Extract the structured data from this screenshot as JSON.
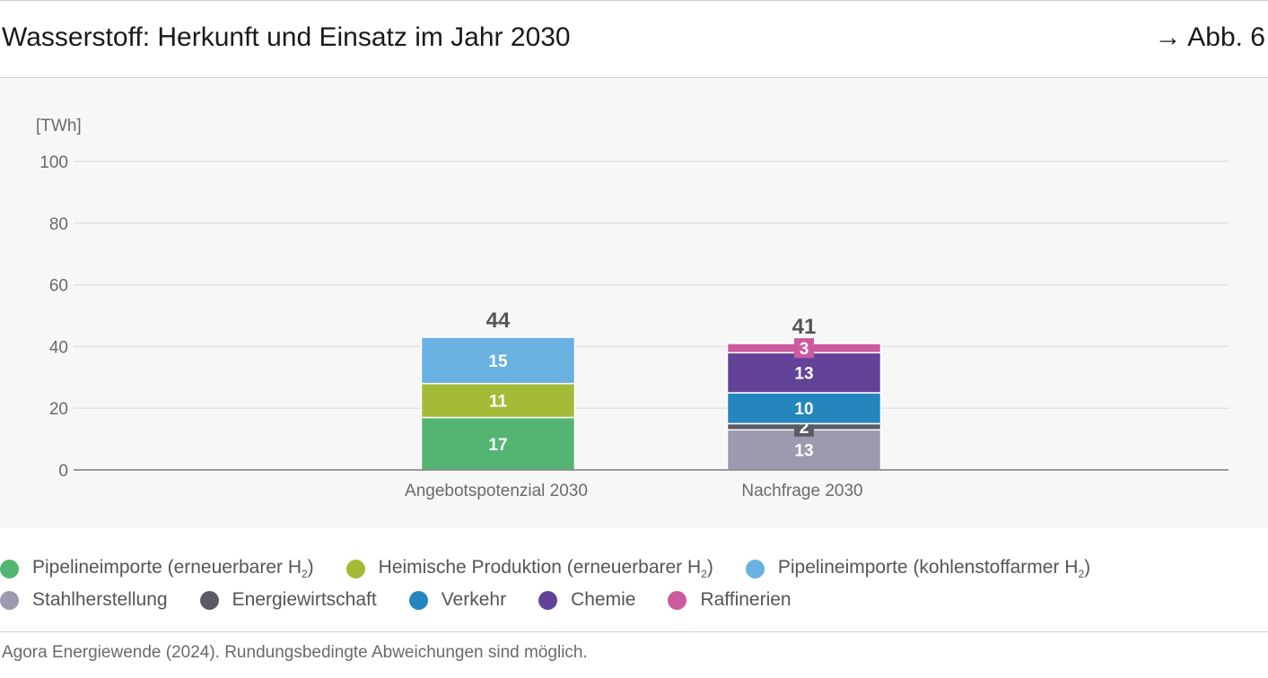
{
  "header": {
    "title": "Wasserstoff: Herkunft und Einsatz im Jahr 2030",
    "figure_ref": "→ Abb. 6"
  },
  "chart_data": {
    "type": "bar",
    "stacked": true,
    "title": "Wasserstoff: Herkunft und Einsatz im Jahr 2030",
    "ylabel": "[TWh]",
    "ylim": [
      0,
      100
    ],
    "yticks": [
      0,
      20,
      40,
      60,
      80,
      100
    ],
    "grid": true,
    "legend_position": "bottom",
    "categories": [
      "Angebotspotenzial 2030",
      "Nachfrage 2030"
    ],
    "totals": [
      44,
      41
    ],
    "series": [
      {
        "name": "Pipelineimporte (erneuerbarer H₂)",
        "color": "#54b573",
        "values": [
          17,
          0
        ],
        "labels": [
          "17",
          ""
        ],
        "label_style": "inside"
      },
      {
        "name": "Heimische Produktion (erneuerbarer H₂)",
        "color": "#a3bb36",
        "values": [
          11,
          0
        ],
        "labels": [
          "11",
          ""
        ],
        "label_style": "inside"
      },
      {
        "name": "Pipelineimporte (kohlenstoffarmer H₂)",
        "color": "#69b1e0",
        "values": [
          15,
          0
        ],
        "labels": [
          "15",
          ""
        ],
        "label_style": "inside"
      },
      {
        "name": "Stahlherstellung",
        "color": "#9b9aae",
        "values": [
          0,
          13
        ],
        "labels": [
          "",
          "13"
        ],
        "label_style": "inside"
      },
      {
        "name": "Energiewirtschaft",
        "color": "#5a5b66",
        "values": [
          0,
          2
        ],
        "labels": [
          "",
          "2"
        ],
        "label_style": "box"
      },
      {
        "name": "Verkehr",
        "color": "#2586bd",
        "values": [
          0,
          10
        ],
        "labels": [
          "",
          "10"
        ],
        "label_style": "inside"
      },
      {
        "name": "Chemie",
        "color": "#634398",
        "values": [
          0,
          13
        ],
        "labels": [
          "",
          "13"
        ],
        "label_style": "inside"
      },
      {
        "name": "Raffinerien",
        "color": "#cc5a9e",
        "values": [
          0,
          3
        ],
        "labels": [
          "",
          "3"
        ],
        "label_style": "box"
      }
    ]
  },
  "legend": {
    "row1": [
      {
        "text": "Pipelineimporte (erneuerbarer H",
        "sub": "2",
        "after": ")",
        "color": "#54b573"
      },
      {
        "text": "Heimische Produktion (erneuerbarer H",
        "sub": "2",
        "after": ")",
        "color": "#a3bb36"
      },
      {
        "text": "Pipelineimporte (kohlenstoffarmer H",
        "sub": "2",
        "after": ")",
        "color": "#69b1e0"
      }
    ],
    "row2": [
      {
        "text": "Stahlherstellung",
        "sub": "",
        "after": "",
        "color": "#9b9aae"
      },
      {
        "text": "Energiewirtschaft",
        "sub": "",
        "after": "",
        "color": "#5a5b66"
      },
      {
        "text": "Verkehr",
        "sub": "",
        "after": "",
        "color": "#2586bd"
      },
      {
        "text": "Chemie",
        "sub": "",
        "after": "",
        "color": "#634398"
      },
      {
        "text": "Raffinerien",
        "sub": "",
        "after": "",
        "color": "#cc5a9e"
      }
    ]
  },
  "footer": {
    "source": "Agora Energiewende (2024). Rundungsbedingte Abweichungen sind möglich."
  }
}
